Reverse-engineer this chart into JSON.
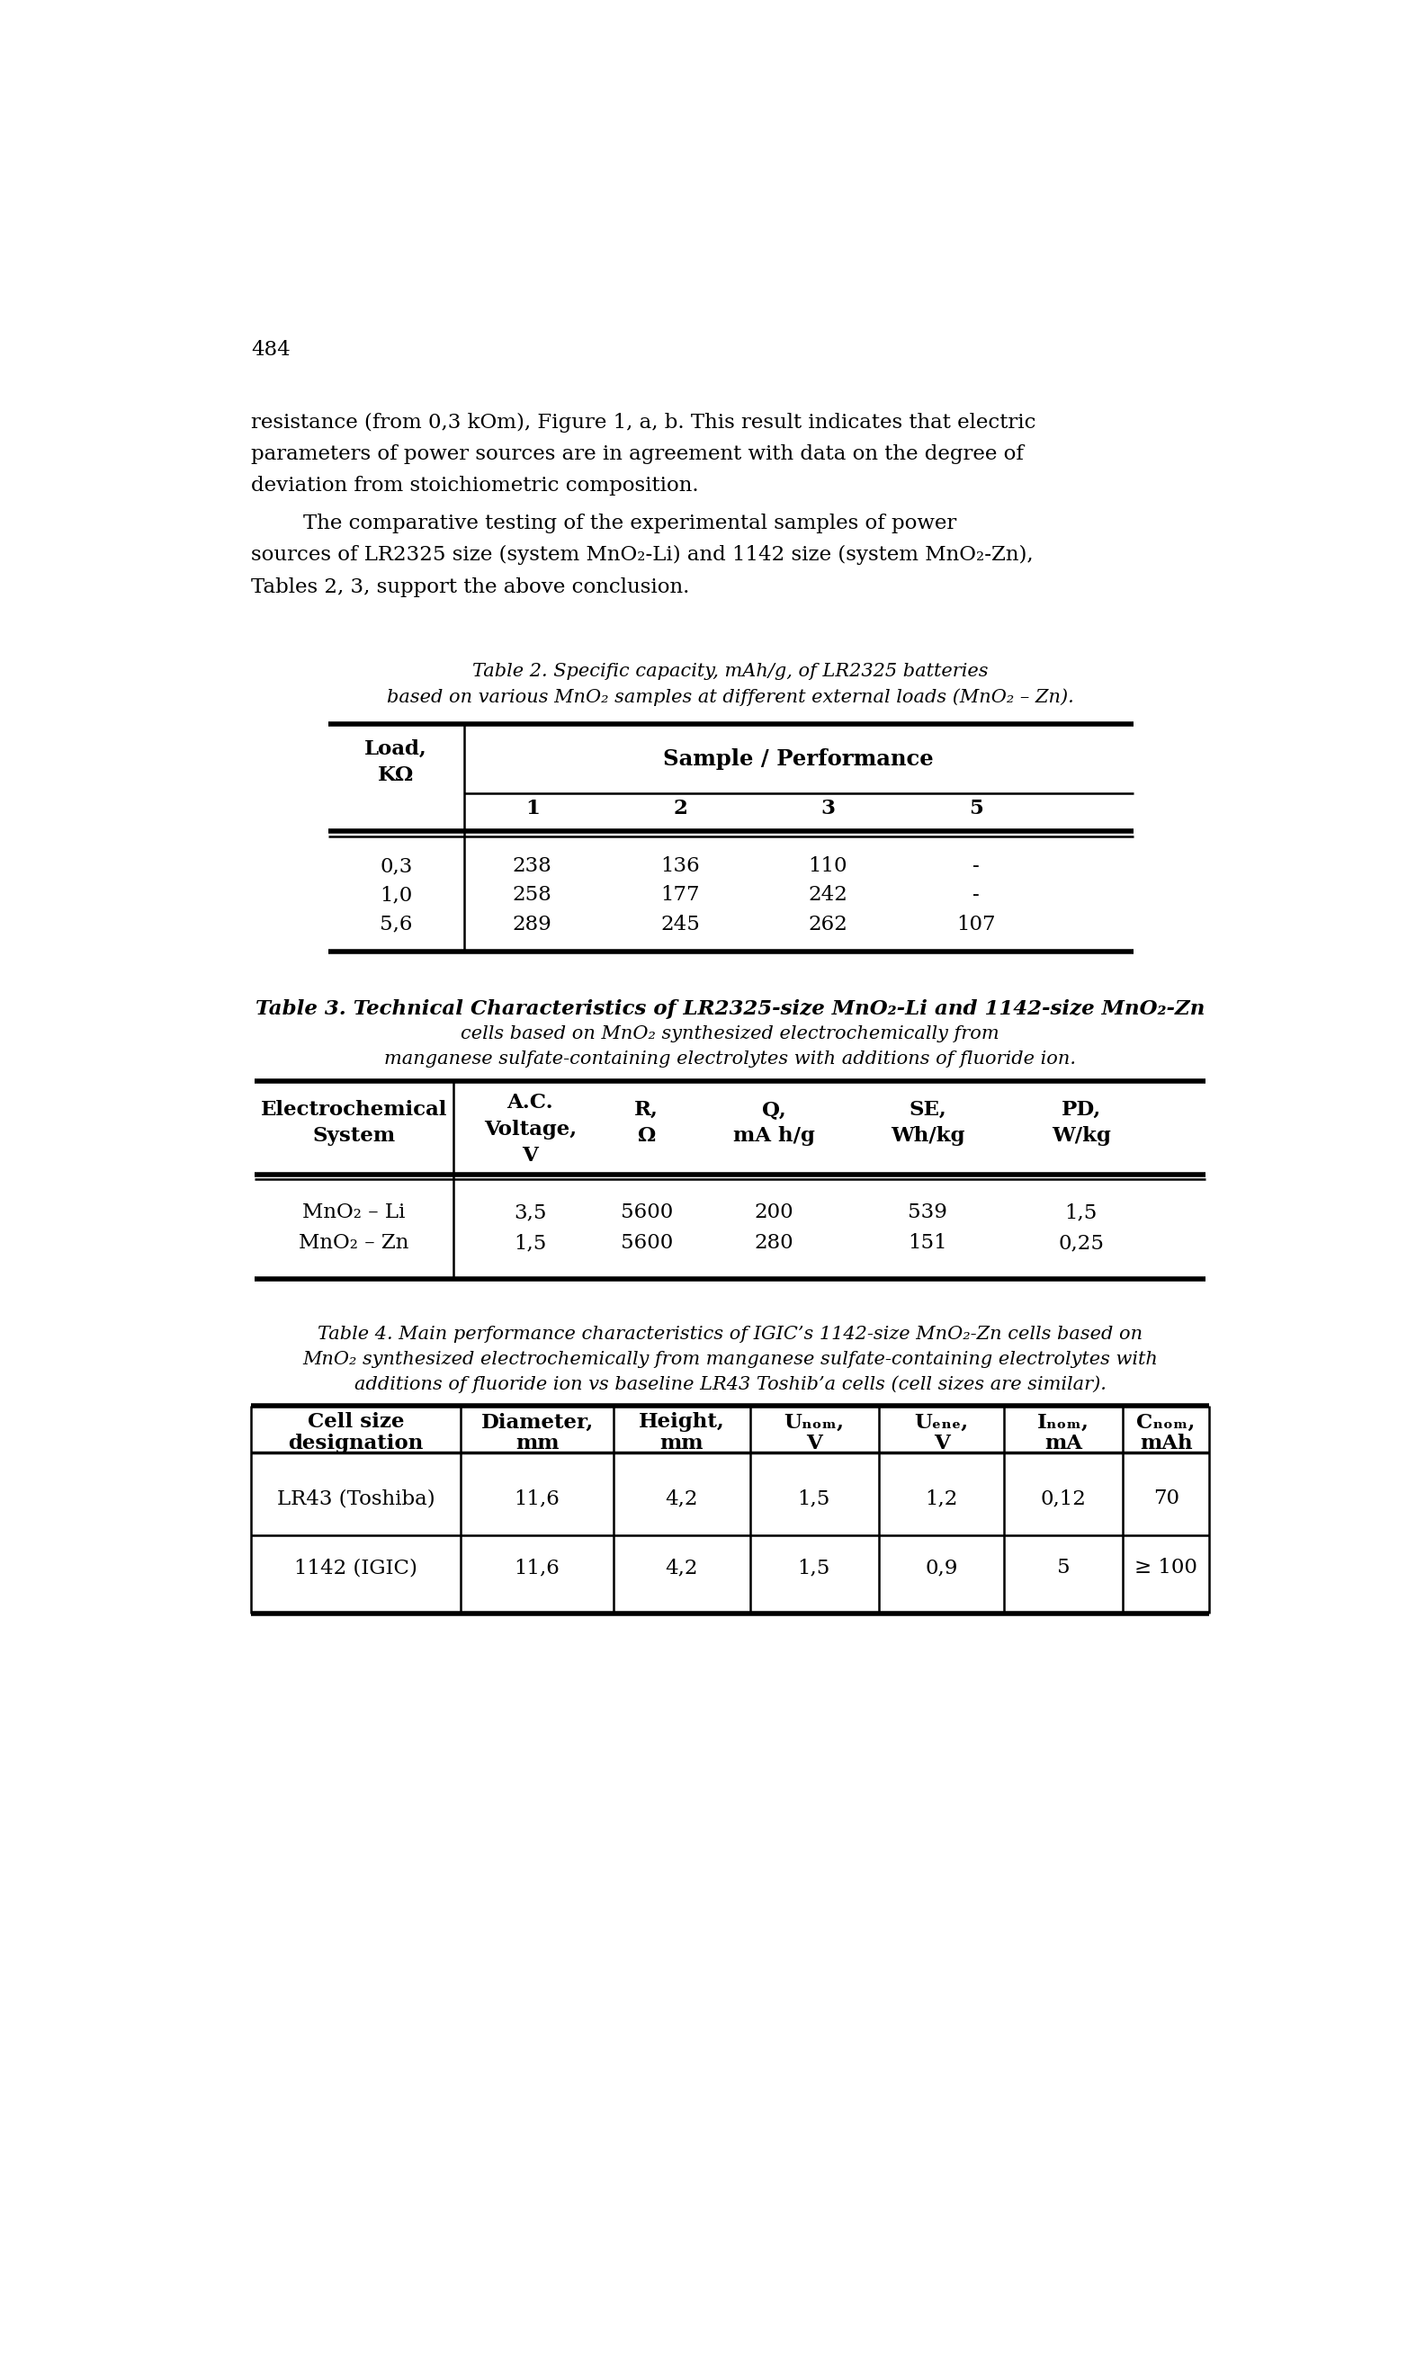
{
  "page_number": "484",
  "bg_color": "#ffffff",
  "text_color": "#000000",
  "p1_lines": [
    "resistance (from 0,3 kOm), Figure 1, a, b. This result indicates that electric",
    "parameters of power sources are in agreement with data on the degree of",
    "deviation from stoichiometric composition."
  ],
  "p2_lines": [
    "        The comparative testing of the experimental samples of power",
    "sources of LR2325 size (system MnO₂-Li) and 1142 size (system MnO₂-Zn),",
    "Tables 2, 3, support the above conclusion."
  ],
  "table2_title_line1": "Table 2. Specific capacity, mAh/g, of LR2325 batteries",
  "table2_title_line2": "based on various MnO₂ samples at different external loads (MnO₂ – Zn).",
  "table2_sub_headers": [
    "1",
    "2",
    "3",
    "5"
  ],
  "table2_rows": [
    [
      "0,3",
      "238",
      "136",
      "110",
      "-"
    ],
    [
      "1,0",
      "258",
      "177",
      "242",
      "-"
    ],
    [
      "5,6",
      "289",
      "245",
      "262",
      "107"
    ]
  ],
  "table3_title_line1": "Table 3. Technical Characteristics of LR2325-size MnO₂-Li and 1142-size MnO₂-Zn",
  "table3_title_line2": "cells based on MnO₂ synthesized electrochemically from",
  "table3_title_line3": "manganese sulfate-containing electrolytes with additions of fluoride ion.",
  "table3_rows": [
    [
      "MnO₂ – Li",
      "3,5",
      "5600",
      "200",
      "539",
      "1,5"
    ],
    [
      "MnO₂ – Zn",
      "1,5",
      "5600",
      "280",
      "151",
      "0,25"
    ]
  ],
  "table4_title_line1": "Table 4. Main performance characteristics of IGIC’s 1142-size MnO₂-Zn cells based on",
  "table4_title_line2": "MnO₂ synthesized electrochemically from manganese sulfate-containing electrolytes with",
  "table4_title_line3": "additions of fluoride ion vs baseline LR43 Toshib’a cells (cell sizes are similar).",
  "table4_rows": [
    [
      "LR43 (Toshiba)",
      "11,6",
      "4,2",
      "1,5",
      "1,2",
      "0,12",
      "70"
    ],
    [
      "1142 (IGIC)",
      "11,6",
      "4,2",
      "1,5",
      "0,9",
      "5",
      "≥ 100"
    ]
  ]
}
